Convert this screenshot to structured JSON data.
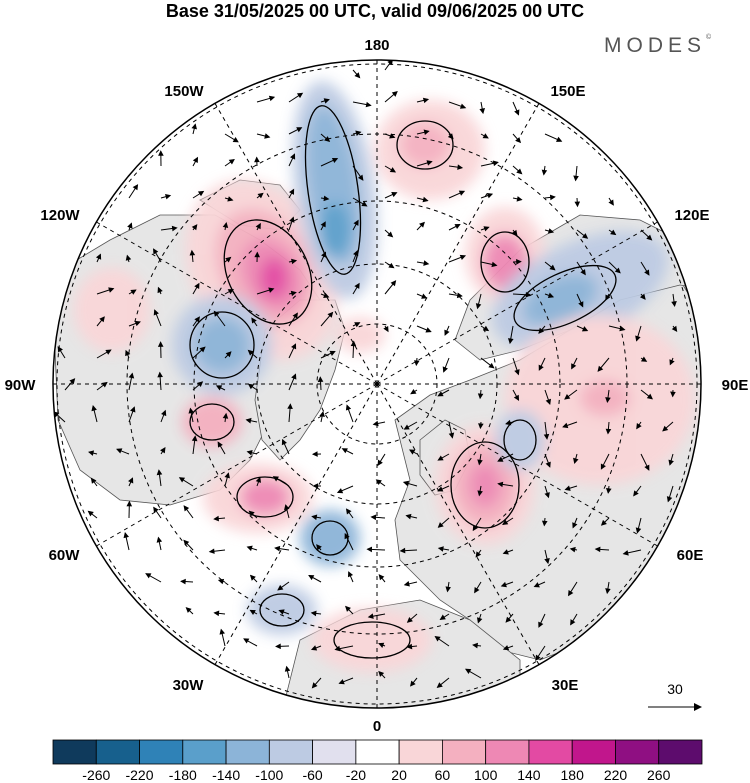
{
  "header": {
    "title": "Base 31/05/2025 00 UTC, valid 09/06/2025 00 UTC",
    "brand": "MODES"
  },
  "map": {
    "projection": "north-polar-stereographic",
    "meridian_labels": [
      "180",
      "150E",
      "120E",
      "90E",
      "60E",
      "30E",
      "0",
      "30W",
      "60W",
      "90W",
      "120W",
      "150W"
    ],
    "vector_scale_value": "30",
    "colors": {
      "land": "#e6e6e6",
      "ocean": "#ffffff",
      "coast": "#555555",
      "contour": "#000000"
    }
  },
  "colorbar": {
    "tick_labels": [
      "-260",
      "-220",
      "-180",
      "-140",
      "-100",
      "-60",
      "-20",
      "20",
      "60",
      "100",
      "140",
      "180",
      "220",
      "260"
    ],
    "colors": [
      "#0f3a5c",
      "#17608d",
      "#2f82b7",
      "#5a9fcb",
      "#8cb4d8",
      "#bdcbe3",
      "#e1e0ee",
      "#ffffff",
      "#f9d6d8",
      "#f4b0c0",
      "#ee88b4",
      "#e34aa3",
      "#c1168c",
      "#8f0f82",
      "#5d0c6d"
    ]
  }
}
